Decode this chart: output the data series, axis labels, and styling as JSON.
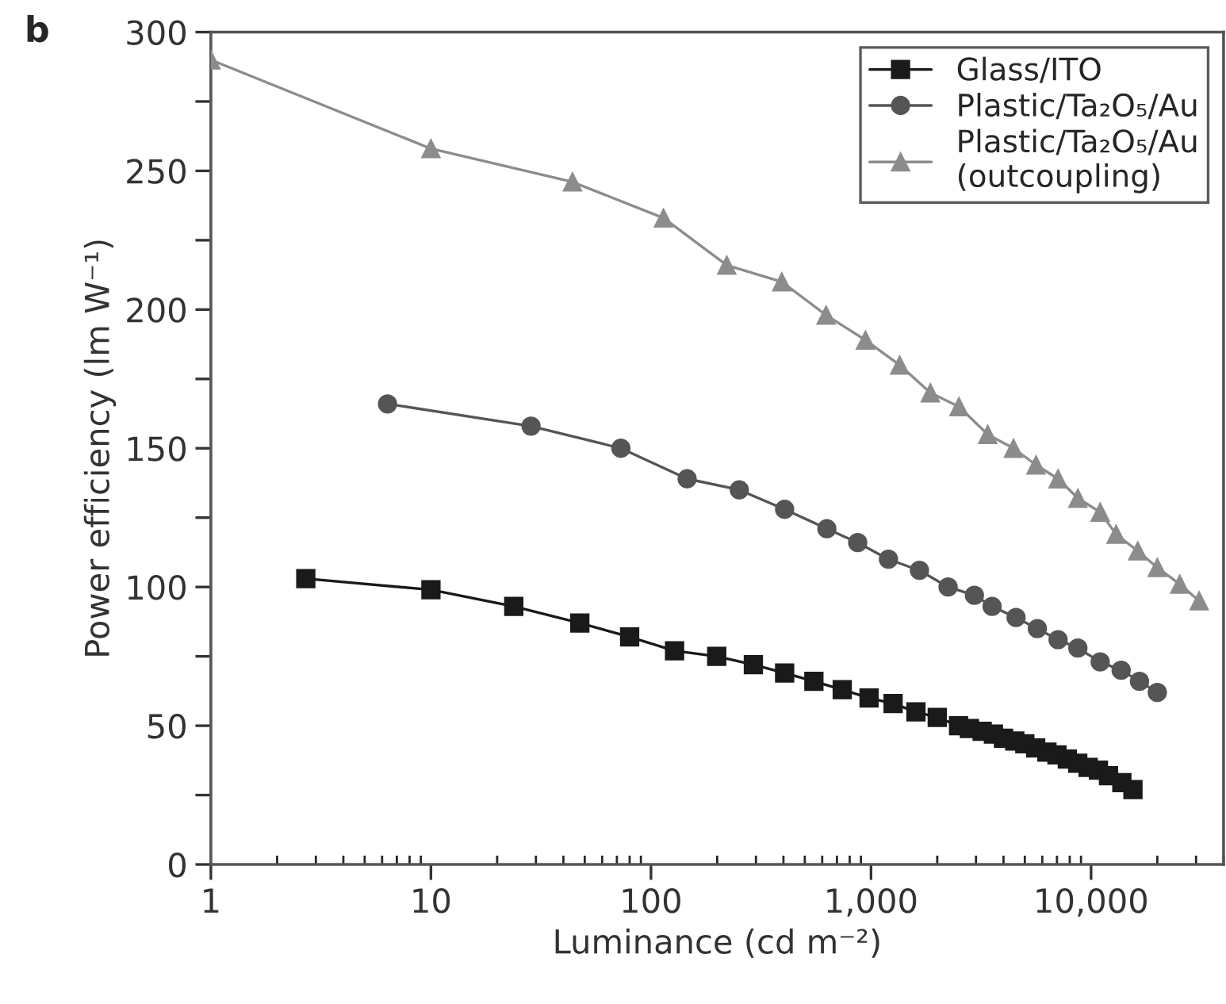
{
  "chart_data": {
    "type": "line",
    "xlabel": "Luminance (cd m⁻²)",
    "ylabel": "Power efficiency (lm W⁻¹)",
    "annotations": [
      "b"
    ],
    "log": "x",
    "xlim": [
      1,
      40000
    ],
    "ylim": [
      0,
      300
    ],
    "xticks": [
      1,
      10,
      100,
      {
        "value": 1000,
        "label": "1,000"
      },
      {
        "value": 10000,
        "label": "10,000"
      }
    ],
    "yticks": [
      0,
      {
        "value": 25,
        "label": null
      },
      50,
      {
        "value": 75,
        "label": null
      },
      100,
      {
        "value": 125,
        "label": null
      },
      150,
      {
        "value": 175,
        "label": null
      },
      200,
      {
        "value": 225,
        "label": null
      },
      250,
      {
        "value": 275,
        "label": null
      },
      300
    ],
    "grid": false,
    "legend": "top right",
    "series": [
      {
        "name": "Glass/ITO",
        "color": "#1a1a1a",
        "marker": "square",
        "x": [
          2.7,
          10,
          23.8,
          47.5,
          80,
          128,
          199,
          292,
          405,
          550,
          740,
          980,
          1260,
          1600,
          2000,
          2500,
          2800,
          3200,
          3600,
          4000,
          4500,
          5000,
          5600,
          6300,
          7000,
          7800,
          8700,
          9700,
          10800,
          12000,
          13800,
          15500
        ],
        "values": [
          103,
          99,
          93,
          87,
          82,
          77,
          75,
          72,
          69,
          66,
          63,
          60,
          58,
          55,
          53,
          50,
          49,
          48,
          47,
          45.5,
          44.5,
          43.5,
          42,
          40.5,
          39.5,
          38,
          36.5,
          35,
          34,
          32,
          29.5,
          27
        ]
      },
      {
        "name": "Plastic/Ta₂O₅/Au",
        "color": "#555555",
        "marker": "circle",
        "x": [
          6.35,
          28.5,
          73,
          146,
          252,
          405,
          630,
          870,
          1200,
          1660,
          2240,
          2950,
          3550,
          4560,
          5700,
          7080,
          8710,
          11000,
          13700,
          16600,
          20000
        ],
        "values": [
          166,
          158,
          150,
          139,
          135,
          128,
          121,
          116,
          110,
          106,
          100,
          97,
          93,
          89,
          85,
          81,
          78,
          73,
          70,
          66,
          62
        ]
      },
      {
        "name": "Plastic/Ta₂O₅/Au\n(outcoupling)",
        "color": "#8c8c8c",
        "marker": "triangle",
        "x": [
          1,
          10,
          44,
          114,
          221,
          393,
          625,
          944,
          1350,
          1860,
          2510,
          3390,
          4440,
          5620,
          7080,
          8710,
          11000,
          13000,
          16300,
          20000,
          25300,
          31000
        ],
        "values": [
          290,
          258,
          246,
          233,
          216,
          210,
          198,
          189,
          180,
          170,
          165,
          155,
          150,
          144,
          139,
          132,
          127,
          119,
          113,
          107,
          101,
          95
        ]
      }
    ]
  }
}
